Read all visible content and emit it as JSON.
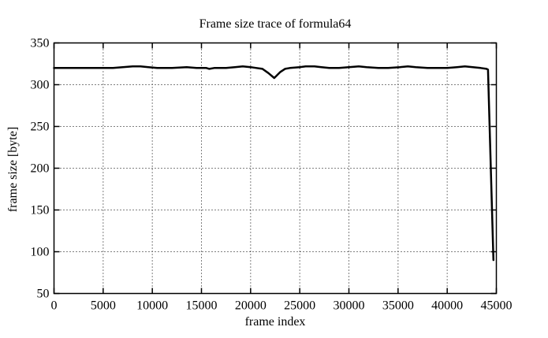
{
  "page": {
    "background": "#ffffff",
    "foreground": "#000000"
  },
  "chart_data": {
    "type": "line",
    "title": "Frame size trace of formula64",
    "xlabel": "frame index",
    "ylabel": "frame size [byte]",
    "xlim": [
      0,
      45000
    ],
    "ylim": [
      50,
      350
    ],
    "xticks": [
      0,
      5000,
      10000,
      15000,
      20000,
      25000,
      30000,
      35000,
      40000,
      45000
    ],
    "yticks": [
      50,
      100,
      150,
      200,
      250,
      300,
      350
    ],
    "grid": "dotted",
    "legend": "none",
    "line_color": "#000000",
    "series": [
      {
        "name": "frame size trace",
        "points": [
          [
            0,
            320
          ],
          [
            1500,
            320
          ],
          [
            3000,
            320
          ],
          [
            4500,
            320
          ],
          [
            6000,
            320
          ],
          [
            7000,
            321
          ],
          [
            8000,
            322
          ],
          [
            8800,
            322
          ],
          [
            9600,
            321
          ],
          [
            10500,
            320
          ],
          [
            12000,
            320
          ],
          [
            13500,
            321
          ],
          [
            14500,
            320
          ],
          [
            15500,
            320
          ],
          [
            15800,
            319
          ],
          [
            16300,
            320
          ],
          [
            17500,
            320
          ],
          [
            18400,
            321
          ],
          [
            19200,
            322
          ],
          [
            20000,
            321
          ],
          [
            20600,
            320
          ],
          [
            21200,
            319
          ],
          [
            21800,
            314
          ],
          [
            22400,
            308
          ],
          [
            23000,
            315
          ],
          [
            23500,
            319
          ],
          [
            24000,
            320
          ],
          [
            25000,
            321
          ],
          [
            25600,
            322
          ],
          [
            26500,
            322
          ],
          [
            27200,
            321
          ],
          [
            28000,
            320
          ],
          [
            29000,
            320
          ],
          [
            30000,
            321
          ],
          [
            31000,
            322
          ],
          [
            31800,
            321
          ],
          [
            33000,
            320
          ],
          [
            34000,
            320
          ],
          [
            35200,
            321
          ],
          [
            36000,
            322
          ],
          [
            36800,
            321
          ],
          [
            38000,
            320
          ],
          [
            39000,
            320
          ],
          [
            40000,
            320
          ],
          [
            41000,
            321
          ],
          [
            41800,
            322
          ],
          [
            42600,
            321
          ],
          [
            43400,
            320
          ],
          [
            44000,
            319
          ],
          [
            44150,
            318
          ],
          [
            44700,
            90
          ]
        ]
      }
    ]
  }
}
